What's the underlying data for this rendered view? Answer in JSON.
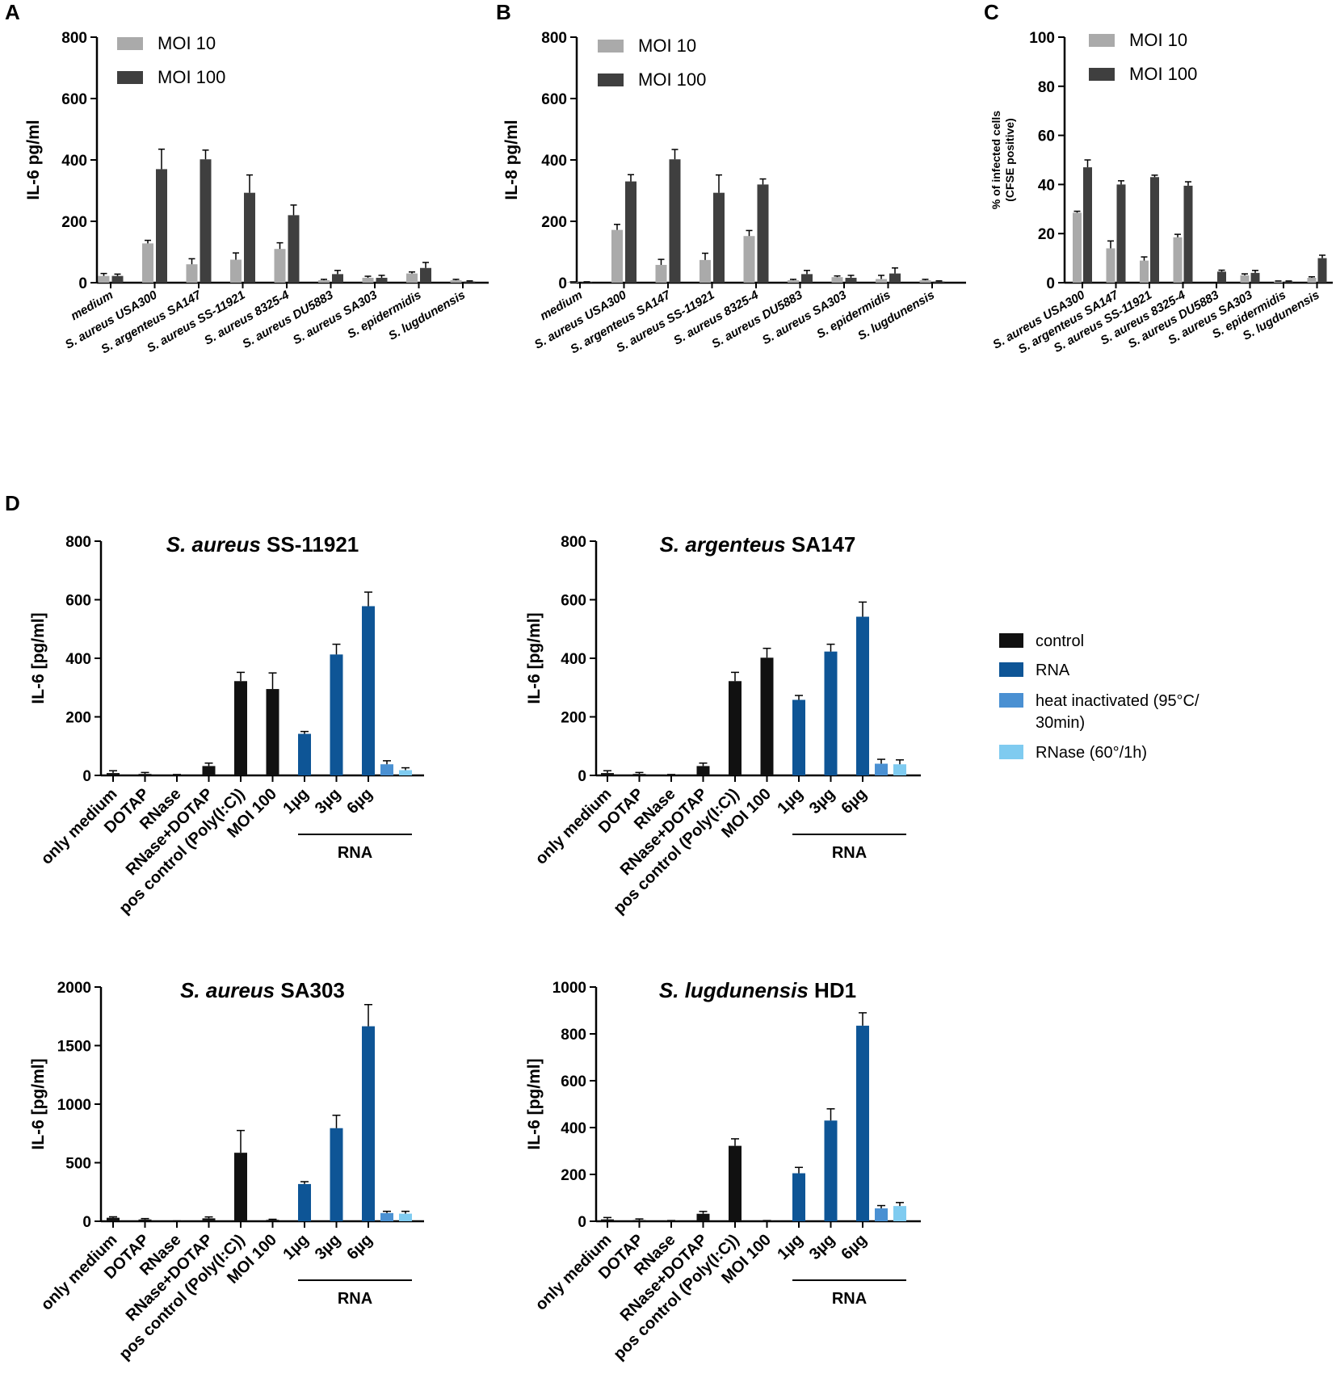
{
  "colors": {
    "moi10": "#aaaaaa",
    "moi100": "#3f3f3f",
    "control": "#111111",
    "rna": "#0e5596",
    "heat_inactivated": "#4a90d2",
    "rnase": "#7fcbf0"
  },
  "series_legend": {
    "moi10": "MOI 10",
    "moi100": "MOI 100"
  },
  "legend_d": [
    {
      "key": "control",
      "label": "control"
    },
    {
      "key": "rna",
      "label": "RNA"
    },
    {
      "key": "heat_inactivated",
      "label": "heat inactivated (95°C/",
      "label2": "30min)"
    },
    {
      "key": "rnase",
      "label": "RNase (60°/1h)"
    }
  ],
  "chart_data": [
    {
      "panel": "A",
      "type": "bar",
      "title": "",
      "ylabel": "IL-6 pg/ml",
      "ylim": [
        0,
        800
      ],
      "yticks": [
        0,
        200,
        400,
        600,
        800
      ],
      "categories": [
        "medium",
        "S. aureus USA300",
        "S. argenteus SA147",
        "S. aureus SS-11921",
        "S. aureus 8325-4",
        "S. aureus DU5883",
        "S. aureus SA303",
        "S. epidermidis",
        "S. lugdunensis"
      ],
      "series": [
        {
          "name": "MOI 10",
          "color_key": "moi10",
          "values": [
            22,
            128,
            60,
            75,
            110,
            8,
            16,
            30,
            8
          ],
          "errors": [
            8,
            10,
            18,
            22,
            20,
            3,
            5,
            5,
            3
          ]
        },
        {
          "name": "MOI 100",
          "color_key": "moi100",
          "values": [
            22,
            370,
            402,
            293,
            220,
            28,
            16,
            48,
            4
          ],
          "errors": [
            6,
            65,
            30,
            58,
            33,
            12,
            8,
            18,
            2
          ]
        }
      ]
    },
    {
      "panel": "B",
      "type": "bar",
      "title": "",
      "ylabel": "IL-8 pg/ml",
      "ylim": [
        0,
        800
      ],
      "yticks": [
        0,
        200,
        400,
        600,
        800
      ],
      "categories": [
        "medium",
        "S. aureus USA300",
        "S. argenteus SA147",
        "S. aureus SS-11921",
        "S. aureus 8325-4",
        "S. aureus DU5883",
        "S. aureus SA303",
        "S. epidermidis",
        "S. lugdunensis"
      ],
      "series": [
        {
          "name": "MOI 10",
          "color_key": "moi10",
          "values": [
            2,
            172,
            58,
            74,
            152,
            8,
            18,
            12,
            8
          ],
          "errors": [
            1,
            18,
            18,
            22,
            18,
            3,
            4,
            12,
            3
          ]
        },
        {
          "name": "MOI 100",
          "color_key": "moi100",
          "values": [
            2,
            330,
            402,
            293,
            320,
            28,
            16,
            30,
            4
          ],
          "errors": [
            1,
            22,
            32,
            58,
            18,
            12,
            8,
            18,
            2
          ]
        }
      ]
    },
    {
      "panel": "C",
      "type": "bar",
      "title": "",
      "ylabel": "% of infected cells",
      "ylabel2": "(CFSE positive)",
      "ylim": [
        0,
        100
      ],
      "yticks": [
        0,
        20,
        40,
        60,
        80,
        100
      ],
      "categories": [
        "S. aureus USA300",
        "S. argenteus SA147",
        "S. aureus SS-11921",
        "S. aureus 8325-4",
        "S. aureus DU5883",
        "S. aureus SA303",
        "S. epidermidis",
        "S. lugdunensis"
      ],
      "series": [
        {
          "name": "MOI 10",
          "color_key": "moi10",
          "values": [
            28.5,
            14,
            9,
            18.5,
            0,
            3,
            0.5,
            2
          ],
          "errors": [
            0.6,
            3,
            1.5,
            1.2,
            0,
            0.6,
            0.2,
            0.4
          ]
        },
        {
          "name": "MOI 100",
          "color_key": "moi100",
          "values": [
            47,
            40,
            43,
            39.5,
            4.5,
            4,
            0.5,
            10
          ],
          "errors": [
            3,
            1.5,
            0.8,
            1.6,
            0.6,
            1,
            0.2,
            1.2
          ]
        }
      ]
    },
    {
      "panel": "D1",
      "type": "bar",
      "title_italic": "S. aureus",
      "title_rest": " SS-11921",
      "ylabel": "IL-6 [pg/ml]",
      "ylim": [
        0,
        800
      ],
      "yticks": [
        0,
        200,
        400,
        600,
        800
      ],
      "categories": [
        "only medium",
        "DOTAP",
        "RNase",
        "RNase+DOTAP",
        "pos control (Poly(I:C))",
        "MOI 100",
        "1µg",
        "3µg",
        "6µg"
      ],
      "group_label": "RNA",
      "bars": [
        {
          "cat": 0,
          "value": 8,
          "error": 8,
          "color_key": "control"
        },
        {
          "cat": 1,
          "value": 5,
          "error": 5,
          "color_key": "control"
        },
        {
          "cat": 2,
          "value": 2,
          "error": 1,
          "color_key": "control"
        },
        {
          "cat": 3,
          "value": 32,
          "error": 10,
          "color_key": "control"
        },
        {
          "cat": 4,
          "value": 322,
          "error": 30,
          "color_key": "control"
        },
        {
          "cat": 5,
          "value": 295,
          "error": 55,
          "color_key": "control"
        },
        {
          "cat": 6,
          "value": 142,
          "error": 8,
          "color_key": "rna"
        },
        {
          "cat": 7,
          "value": 413,
          "error": 35,
          "color_key": "rna"
        },
        {
          "cat": 8,
          "value": 578,
          "error": 48,
          "color_key": "rna"
        },
        {
          "cat": 8,
          "offset": 1,
          "value": 38,
          "error": 12,
          "color_key": "heat_inactivated"
        },
        {
          "cat": 8,
          "offset": 2,
          "value": 18,
          "error": 8,
          "color_key": "rnase"
        }
      ]
    },
    {
      "panel": "D2",
      "type": "bar",
      "title_italic": "S. argenteus",
      "title_rest": " SA147",
      "ylabel": "IL-6 [pg/ml]",
      "ylim": [
        0,
        800
      ],
      "yticks": [
        0,
        200,
        400,
        600,
        800
      ],
      "categories": [
        "only medium",
        "DOTAP",
        "RNase",
        "RNase+DOTAP",
        "pos control (Poly(I:C))",
        "MOI 100",
        "1µg",
        "3µg",
        "6µg"
      ],
      "group_label": "RNA",
      "bars": [
        {
          "cat": 0,
          "value": 8,
          "error": 8,
          "color_key": "control"
        },
        {
          "cat": 1,
          "value": 5,
          "error": 5,
          "color_key": "control"
        },
        {
          "cat": 2,
          "value": 2,
          "error": 1,
          "color_key": "control"
        },
        {
          "cat": 3,
          "value": 32,
          "error": 10,
          "color_key": "control"
        },
        {
          "cat": 4,
          "value": 322,
          "error": 30,
          "color_key": "control"
        },
        {
          "cat": 5,
          "value": 402,
          "error": 32,
          "color_key": "control"
        },
        {
          "cat": 6,
          "value": 258,
          "error": 15,
          "color_key": "rna"
        },
        {
          "cat": 7,
          "value": 423,
          "error": 25,
          "color_key": "rna"
        },
        {
          "cat": 8,
          "value": 542,
          "error": 50,
          "color_key": "rna"
        },
        {
          "cat": 8,
          "offset": 1,
          "value": 40,
          "error": 15,
          "color_key": "heat_inactivated"
        },
        {
          "cat": 8,
          "offset": 2,
          "value": 38,
          "error": 15,
          "color_key": "rnase"
        }
      ]
    },
    {
      "panel": "D3",
      "type": "bar",
      "title_italic": "S. aureus",
      "title_rest": " SA303",
      "ylabel": "IL-6 [pg/ml]",
      "ylim": [
        0,
        2000
      ],
      "yticks": [
        0,
        500,
        1000,
        1500,
        2000
      ],
      "categories": [
        "only medium",
        "DOTAP",
        "RNase",
        "RNase+DOTAP",
        "pos control (Poly(I:C))",
        "MOI 100",
        "1µg",
        "3µg",
        "6µg"
      ],
      "group_label": "RNA",
      "bars": [
        {
          "cat": 0,
          "value": 30,
          "error": 8,
          "color_key": "control"
        },
        {
          "cat": 1,
          "value": 15,
          "error": 8,
          "color_key": "control"
        },
        {
          "cat": 2,
          "value": 2,
          "error": 1,
          "color_key": "control"
        },
        {
          "cat": 3,
          "value": 25,
          "error": 12,
          "color_key": "control"
        },
        {
          "cat": 4,
          "value": 585,
          "error": 190,
          "color_key": "control"
        },
        {
          "cat": 5,
          "value": 12,
          "error": 5,
          "color_key": "control"
        },
        {
          "cat": 6,
          "value": 318,
          "error": 20,
          "color_key": "rna"
        },
        {
          "cat": 7,
          "value": 795,
          "error": 110,
          "color_key": "rna"
        },
        {
          "cat": 8,
          "value": 1665,
          "error": 185,
          "color_key": "rna"
        },
        {
          "cat": 8,
          "offset": 1,
          "value": 70,
          "error": 15,
          "color_key": "heat_inactivated"
        },
        {
          "cat": 8,
          "offset": 2,
          "value": 65,
          "error": 20,
          "color_key": "rnase"
        }
      ]
    },
    {
      "panel": "D4",
      "type": "bar",
      "title_italic": "S. lugdunensis",
      "title_rest": " HD1",
      "ylabel": "IL-6 [pg/ml]",
      "ylim": [
        0,
        1000
      ],
      "yticks": [
        0,
        200,
        400,
        600,
        800,
        1000
      ],
      "categories": [
        "only medium",
        "DOTAP",
        "RNase",
        "RNase+DOTAP",
        "pos control (Poly(I:C))",
        "MOI 100",
        "1µg",
        "3µg",
        "6µg"
      ],
      "group_label": "RNA",
      "bars": [
        {
          "cat": 0,
          "value": 8,
          "error": 8,
          "color_key": "control"
        },
        {
          "cat": 1,
          "value": 5,
          "error": 5,
          "color_key": "control"
        },
        {
          "cat": 2,
          "value": 2,
          "error": 1,
          "color_key": "control"
        },
        {
          "cat": 3,
          "value": 32,
          "error": 10,
          "color_key": "control"
        },
        {
          "cat": 4,
          "value": 322,
          "error": 30,
          "color_key": "control"
        },
        {
          "cat": 5,
          "value": 2,
          "error": 1,
          "color_key": "control"
        },
        {
          "cat": 6,
          "value": 205,
          "error": 25,
          "color_key": "rna"
        },
        {
          "cat": 7,
          "value": 430,
          "error": 50,
          "color_key": "rna"
        },
        {
          "cat": 8,
          "value": 835,
          "error": 55,
          "color_key": "rna"
        },
        {
          "cat": 8,
          "offset": 1,
          "value": 55,
          "error": 12,
          "color_key": "heat_inactivated"
        },
        {
          "cat": 8,
          "offset": 2,
          "value": 65,
          "error": 15,
          "color_key": "rnase"
        }
      ]
    }
  ]
}
